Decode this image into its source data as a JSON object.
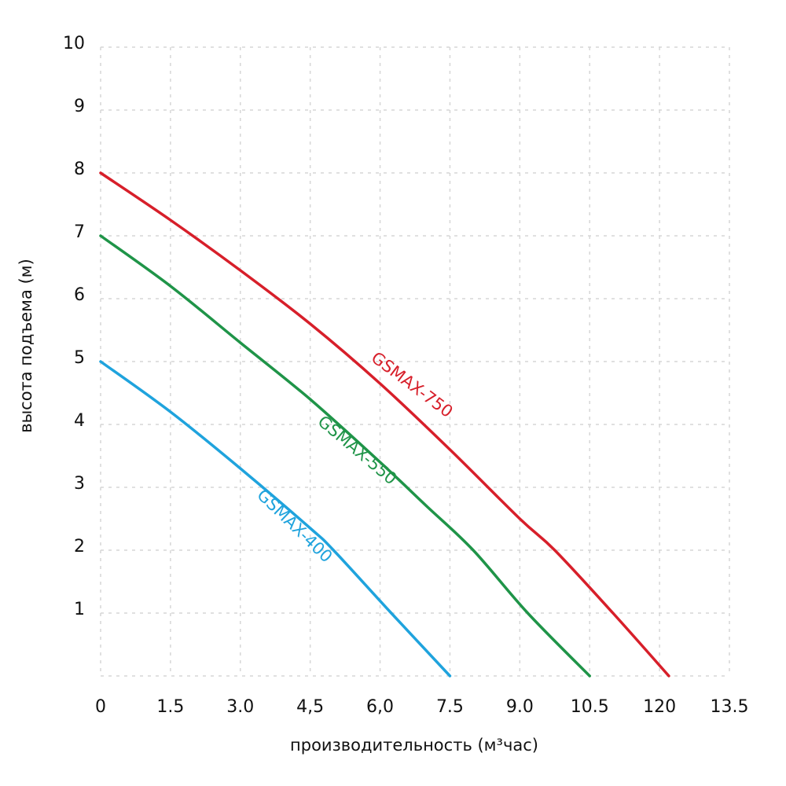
{
  "chart_data": {
    "type": "line",
    "xlabel": "производительность (м³час)",
    "ylabel": "высота подъема (м)",
    "x_ticks": [
      "0",
      "1.5",
      "3.0",
      "4,5",
      "6,0",
      "7.5",
      "9.0",
      "10.5",
      "120",
      "13.5"
    ],
    "x_tick_values": [
      0,
      1.5,
      3,
      4.5,
      6,
      7.5,
      9,
      10.5,
      12,
      13.5
    ],
    "y_ticks": [
      "1",
      "2",
      "3",
      "4",
      "5",
      "6",
      "7",
      "8",
      "9",
      "10"
    ],
    "y_tick_values": [
      1,
      2,
      3,
      4,
      5,
      6,
      7,
      8,
      9,
      10
    ],
    "xlim": [
      0,
      13.5
    ],
    "ylim": [
      0,
      10
    ],
    "grid": true,
    "grid_style": "dotted",
    "legend": "inline labels along curves",
    "series": [
      {
        "name": "GSMAX-750",
        "color": "#d71f2a",
        "x": [
          0,
          1.5,
          3,
          4.5,
          6,
          7.5,
          9,
          9.75,
          11,
          12.2
        ],
        "y": [
          8,
          7.25,
          6.45,
          5.6,
          4.65,
          3.6,
          2.5,
          2,
          1,
          0
        ]
      },
      {
        "name": "GSMAX-550",
        "color": "#1f9448",
        "x": [
          0,
          1.5,
          3,
          4.5,
          6,
          7,
          8,
          9.17,
          10.5
        ],
        "y": [
          7,
          6.2,
          5.3,
          4.4,
          3.4,
          2.7,
          2,
          1,
          0
        ]
      },
      {
        "name": "GSMAX-400",
        "color": "#1fa3dd",
        "x": [
          0,
          1.5,
          3,
          4.5,
          5,
          6.24,
          7.5
        ],
        "y": [
          5,
          4.2,
          3.3,
          2.35,
          2,
          1,
          0
        ]
      }
    ]
  }
}
